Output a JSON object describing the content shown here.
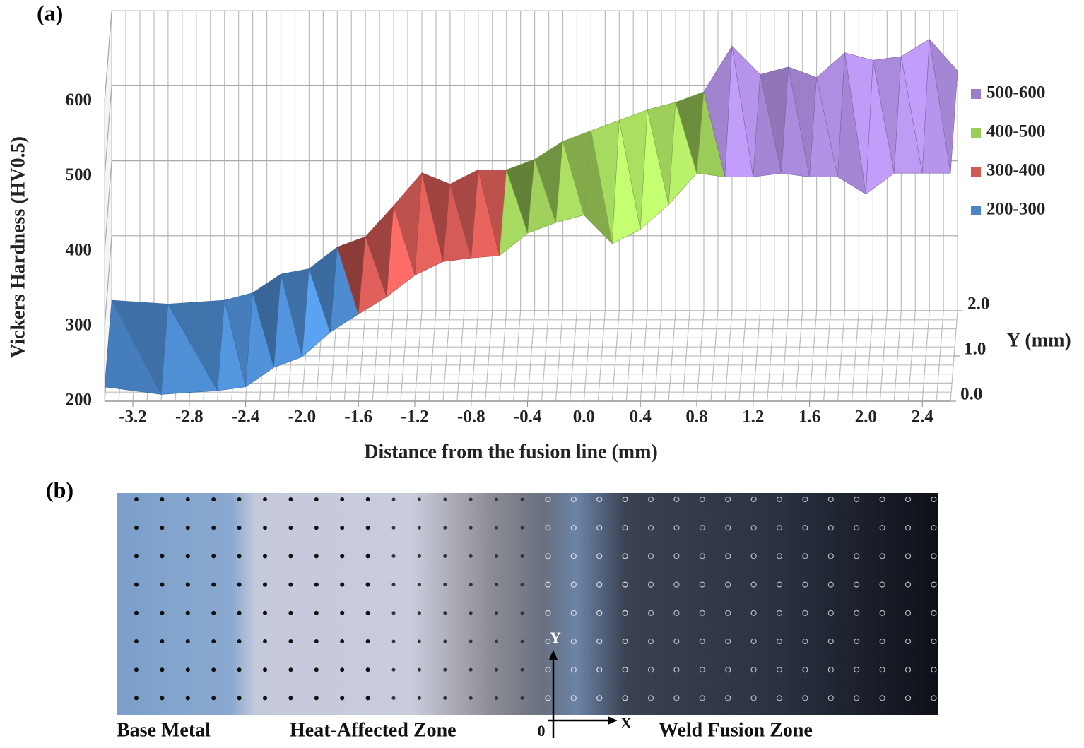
{
  "panel_a": {
    "label": "(a)",
    "chart_data": {
      "type": "surface3d",
      "x_label": "Distance from the fusion line (mm)",
      "y_label": "Y (mm)",
      "z_label": "Vickers Hardness (HV0.5)",
      "x": [
        -3.4,
        -3.0,
        -2.6,
        -2.4,
        -2.2,
        -2.0,
        -1.8,
        -1.6,
        -1.4,
        -1.2,
        -1.0,
        -0.8,
        -0.6,
        -0.4,
        -0.2,
        0,
        0.2,
        0.4,
        0.6,
        0.8,
        1.0,
        1.2,
        1.4,
        1.6,
        1.8,
        2.0,
        2.2,
        2.4,
        2.6
      ],
      "rows": [
        {
          "y": 0,
          "values": [
            219,
            209,
            214,
            219,
            245,
            259,
            292,
            316,
            339,
            368,
            386,
            391,
            394,
            424,
            438,
            448,
            410,
            429,
            462,
            504,
            499,
            499,
            504,
            499,
            499,
            476,
            504,
            504,
            504
          ]
        },
        {
          "y": 2,
          "values": [
            214,
            209,
            214,
            224,
            249,
            256,
            285,
            299,
            340,
            384,
            369,
            388,
            388,
            402,
            426,
            440,
            454,
            468,
            478,
            492,
            553,
            515,
            525,
            511,
            544,
            534,
            539,
            562,
            520
          ]
        }
      ],
      "bands": [
        {
          "name": "500-600",
          "color": "#9b7ec8",
          "range": [
            500,
            600
          ]
        },
        {
          "name": "400-500",
          "color": "#9ccc5a",
          "range": [
            400,
            500
          ]
        },
        {
          "name": "300-400",
          "color": "#d25a55",
          "range": [
            300,
            400
          ]
        },
        {
          "name": "200-300",
          "color": "#4a86c8",
          "range": [
            200,
            300
          ]
        }
      ],
      "xlim": [
        -3.4,
        2.6
      ],
      "xticks": [
        -3.2,
        -2.8,
        -2.4,
        {
          "value": -2,
          "label": "-2.0"
        },
        -1.6,
        -1.2,
        -0.8,
        -0.4,
        {
          "value": 0,
          "label": "0.0"
        },
        0.4,
        0.8,
        1.2,
        1.6,
        {
          "value": 2,
          "label": "2.0"
        },
        2.4
      ],
      "ylim": [
        0,
        2
      ],
      "yticks": [
        {
          "value": 0,
          "label": "0.0"
        },
        {
          "value": 1,
          "label": "1.0"
        },
        {
          "value": 2,
          "label": "2.0"
        }
      ],
      "zlim": [
        200,
        600
      ],
      "zticks": [
        200,
        300,
        400,
        500,
        600
      ]
    }
  },
  "panel_b": {
    "label": "(b)",
    "zones": [
      "Base Metal",
      "Heat-Affected Zone",
      "Weld Fusion Zone"
    ],
    "origin": "0",
    "axis_x": "X",
    "axis_y": "Y"
  }
}
